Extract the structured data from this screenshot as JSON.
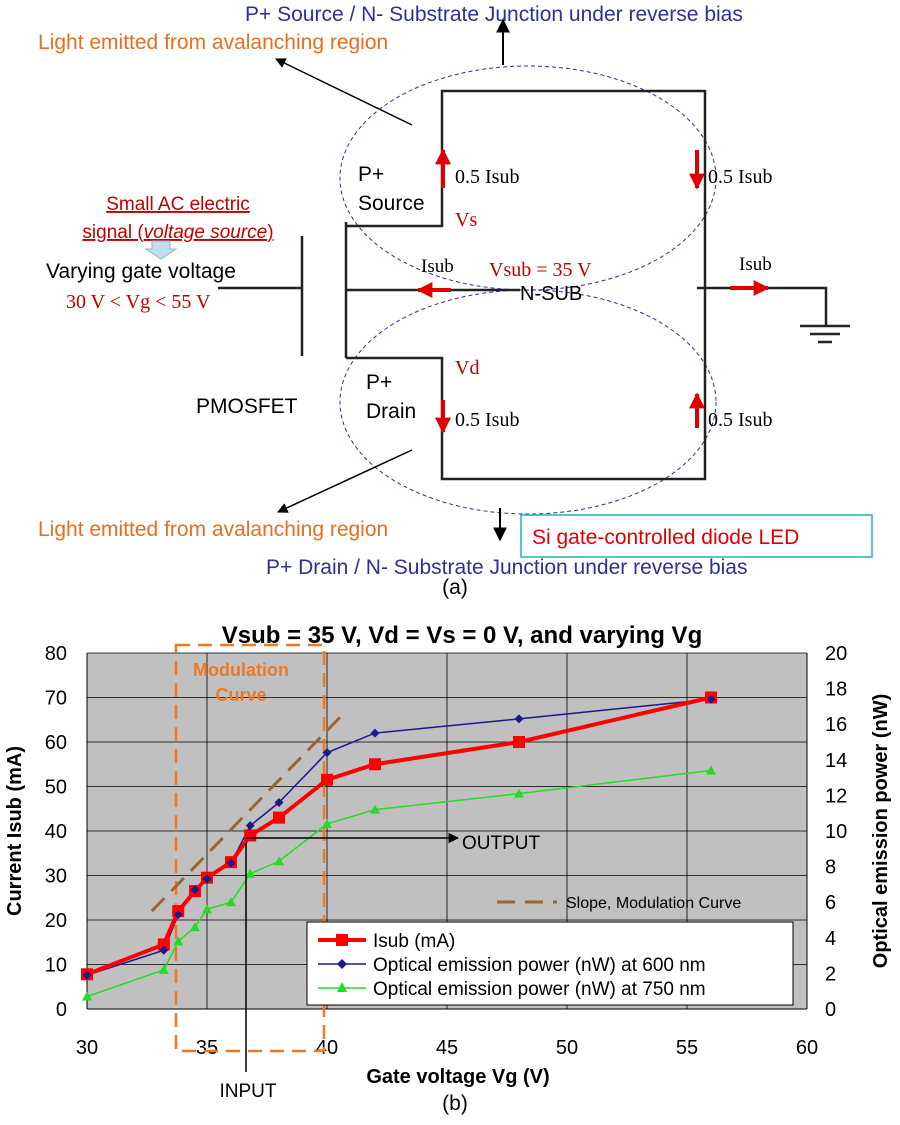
{
  "figure_a": {
    "top_junction": "P+ Source / N- Substrate Junction under reverse bias",
    "light_top": "Light emitted from avalanching region",
    "source": {
      "line1": "P+",
      "line2": "Source"
    },
    "vs": "Vs",
    "half_isub": "0.5 Isub",
    "ac_signal": {
      "line1": "Small AC electric",
      "line2_prefix": "signal (",
      "line2_italic": "voltage source",
      "line2_suffix": ")"
    },
    "varying_gate": "Varying gate voltage",
    "vg_range": "30 V < Vg < 55 V",
    "isub_label": "Isub",
    "vsub_label": "Vsub = 35 V",
    "nsub": "N-SUB",
    "drain": {
      "line1": "P+",
      "line2": "Drain"
    },
    "vd": "Vd",
    "pmosfet": "PMOSFET",
    "light_bottom": "Light emitted from avalanching region",
    "diode_box": "Si gate-controlled diode LED",
    "bottom_junction": "P+ Drain / N- Substrate Junction under reverse bias",
    "caption": "(a)"
  },
  "figure_b": {
    "annotations": {
      "modulation_curve": [
        "Modulation",
        "Curve"
      ],
      "output": "OUTPUT",
      "input": "INPUT"
    },
    "caption": "(b)"
  },
  "chart_data": {
    "type": "line",
    "title": "Vsub = 35 V, Vd = Vs = 0 V, and varying Vg",
    "xlabel": "Gate voltage Vg (V)",
    "ylabel": "Current Isub (mA)",
    "y2label": "Optical emission power (nW)",
    "xlim": [
      30,
      60
    ],
    "ylim": [
      0,
      80
    ],
    "y2lim": [
      0,
      20
    ],
    "xticks": [
      30,
      35,
      40,
      45,
      50,
      55,
      60
    ],
    "yticks": [
      0,
      10,
      20,
      30,
      40,
      50,
      60,
      70,
      80
    ],
    "y2ticks": [
      0,
      2,
      4,
      6,
      8,
      10,
      12,
      14,
      16,
      18,
      20
    ],
    "legend_position": "bottom-right",
    "series": [
      {
        "name": "Isub (mA)",
        "axis": "left",
        "color": "#ff0000",
        "x": [
          30,
          33.2,
          33.8,
          34.5,
          35,
          36,
          36.8,
          38,
          40,
          42,
          48,
          56
        ],
        "y": [
          7.8,
          14.5,
          22,
          26.5,
          29.5,
          33,
          39,
          43,
          51.5,
          55,
          60,
          70
        ]
      },
      {
        "name": "Optical emission power (nW) at 600 nm",
        "axis": "right",
        "color": "#1a1a8c",
        "x": [
          30,
          33.2,
          33.8,
          34.5,
          35,
          36,
          36.8,
          38,
          40,
          42,
          48,
          56
        ],
        "y": [
          1.9,
          3.3,
          5.3,
          6.7,
          7.3,
          8.2,
          10.3,
          11.6,
          14.4,
          15.5,
          16.3,
          17.4
        ]
      },
      {
        "name": "Optical emission power (nW) at 750 nm",
        "axis": "right",
        "color": "#22dd22",
        "x": [
          30,
          33.2,
          33.8,
          34.5,
          35,
          36,
          36.8,
          38,
          40,
          42,
          48,
          56
        ],
        "y": [
          0.7,
          2.2,
          3.8,
          4.6,
          5.6,
          6.0,
          7.6,
          8.3,
          10.4,
          11.2,
          12.1,
          13.4
        ]
      }
    ],
    "slope_line": {
      "name": "Slope, Modulation Curve",
      "color": "#996633",
      "x": [
        32.7,
        40.8
      ],
      "y": [
        22,
        67
      ]
    }
  }
}
